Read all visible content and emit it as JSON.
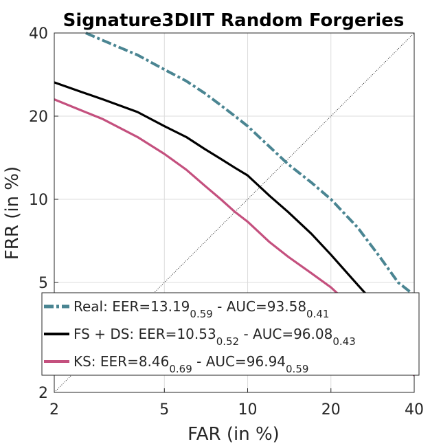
{
  "chart_data": {
    "type": "line",
    "title": "Signature3DIIT Random Forgeries",
    "xlabel": "FAR (in %)",
    "ylabel": "FRR (in %)",
    "x_scale": "log",
    "y_scale": "log",
    "xlim": [
      2,
      40
    ],
    "ylim": [
      2,
      40
    ],
    "xticks": [
      2,
      5,
      10,
      20,
      40
    ],
    "yticks": [
      2,
      5,
      10,
      20,
      40
    ],
    "xtick_labels": [
      "2",
      "5",
      "10",
      "20",
      "40"
    ],
    "ytick_labels": [
      "2",
      "5",
      "10",
      "20",
      "40"
    ],
    "grid": true,
    "legend_position": "bottom",
    "diagonal_reference": true,
    "series": [
      {
        "name": "Real",
        "color": "#4a8592",
        "style": "dashed",
        "eer": "13.19",
        "eer_sub": "0.59",
        "auc": "93.58",
        "auc_sub": "0.41",
        "x": [
          2.6,
          3.0,
          4.0,
          5.0,
          6.0,
          7.0,
          8.0,
          9.0,
          10.0,
          12.0,
          14.0,
          17.0,
          20.0,
          25.0,
          30.0,
          35.0,
          40.0
        ],
        "y": [
          40.0,
          37.6,
          33.3,
          29.5,
          26.8,
          24.2,
          21.9,
          20.0,
          18.4,
          15.5,
          13.4,
          11.5,
          10.0,
          7.9,
          6.2,
          5.0,
          4.5
        ]
      },
      {
        "name": "FS + DS",
        "color": "#000000",
        "style": "solid",
        "eer": "10.53",
        "eer_sub": "0.52",
        "auc": "96.08",
        "auc_sub": "0.43",
        "x": [
          2.0,
          2.5,
          3.0,
          4.0,
          5.0,
          6.0,
          7.0,
          8.0,
          9.0,
          10.0,
          12.0,
          14.0,
          17.0,
          20.0,
          25.0,
          30.0,
          35.0,
          40.0
        ],
        "y": [
          26.5,
          24.5,
          23.0,
          20.7,
          18.4,
          16.8,
          15.2,
          14.0,
          13.0,
          12.2,
          10.3,
          9.0,
          7.5,
          6.3,
          4.9,
          4.0,
          3.5,
          3.0
        ]
      },
      {
        "name": "KS",
        "color": "#c4507e",
        "style": "solid",
        "eer": "8.46",
        "eer_sub": "0.69",
        "auc": "96.94",
        "auc_sub": "0.59",
        "x": [
          2.0,
          2.5,
          3.0,
          4.0,
          5.0,
          6.0,
          7.0,
          8.0,
          9.0,
          10.0,
          12.0,
          14.0,
          17.0,
          20.0,
          25.0,
          30.0,
          35.0,
          40.0
        ],
        "y": [
          23.0,
          21.0,
          19.5,
          16.8,
          14.6,
          12.8,
          11.2,
          10.0,
          9.0,
          8.3,
          7.0,
          6.2,
          5.4,
          4.8,
          3.9,
          3.2,
          2.7,
          2.3
        ]
      }
    ]
  }
}
